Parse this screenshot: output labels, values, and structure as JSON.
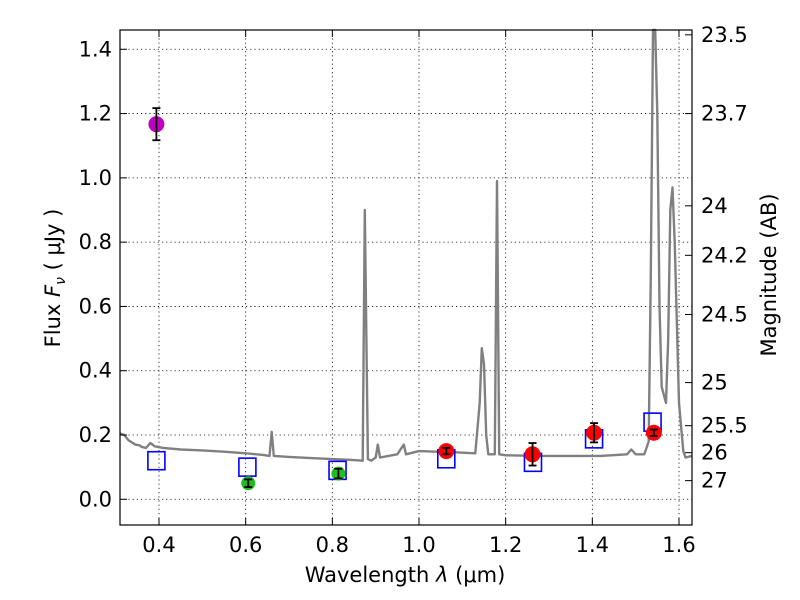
{
  "chart_data": {
    "type": "scatter",
    "xlabel_prefix": "Wavelength  ",
    "xlabel_math": "λ",
    "xlabel_unit": " (μm)",
    "ylabel_prefix": "Flux  ",
    "ylabel_math_F": "F",
    "ylabel_math_sub": "ν",
    "ylabel_unit": "  ( μJy )",
    "y2label": "Magnitude (AB)",
    "xlim": [
      0.31,
      1.63
    ],
    "ylim": [
      -0.08,
      1.46
    ],
    "grid": true,
    "x_ticks": [
      0.4,
      0.6,
      0.8,
      1.0,
      1.2,
      1.4,
      1.6
    ],
    "x_tick_labels": [
      "0.4",
      "0.6",
      "0.8",
      "1.0",
      "1.2",
      "1.4",
      "1.6"
    ],
    "y_ticks": [
      0.0,
      0.2,
      0.4,
      0.6,
      0.8,
      1.0,
      1.2,
      1.4
    ],
    "y_tick_labels": [
      "0.0",
      "0.2",
      "0.4",
      "0.6",
      "0.8",
      "1.0",
      "1.2",
      "1.4"
    ],
    "mag_ticks": [
      {
        "label": "23.5",
        "flux": 1.445
      },
      {
        "label": "23.7",
        "flux": 1.2
      },
      {
        "label": "24",
        "flux": 0.913
      },
      {
        "label": "24.2",
        "flux": 0.759
      },
      {
        "label": "24.5",
        "flux": 0.575
      },
      {
        "label": "25",
        "flux": 0.363
      },
      {
        "label": "25.5",
        "flux": 0.229
      },
      {
        "label": "26",
        "flux": 0.145
      },
      {
        "label": "27",
        "flux": 0.058
      }
    ],
    "colors": {
      "template": "#808080",
      "model_box": "#0000ff",
      "obs_uv": "#bf00bf",
      "obs_optical": "#22bb22",
      "obs_nir": "#ff0000",
      "errorbar": "#000000"
    },
    "template_spectrum": [
      [
        0.31,
        0.205
      ],
      [
        0.32,
        0.2
      ],
      [
        0.33,
        0.183
      ],
      [
        0.34,
        0.175
      ],
      [
        0.345,
        0.17
      ],
      [
        0.355,
        0.168
      ],
      [
        0.36,
        0.163
      ],
      [
        0.37,
        0.16
      ],
      [
        0.38,
        0.175
      ],
      [
        0.385,
        0.17
      ],
      [
        0.39,
        0.165
      ],
      [
        0.41,
        0.16
      ],
      [
        0.45,
        0.155
      ],
      [
        0.5,
        0.152
      ],
      [
        0.55,
        0.148
      ],
      [
        0.6,
        0.143
      ],
      [
        0.64,
        0.138
      ],
      [
        0.655,
        0.135
      ],
      [
        0.66,
        0.21
      ],
      [
        0.665,
        0.135
      ],
      [
        0.7,
        0.132
      ],
      [
        0.75,
        0.128
      ],
      [
        0.8,
        0.125
      ],
      [
        0.84,
        0.123
      ],
      [
        0.87,
        0.12
      ],
      [
        0.875,
        0.9
      ],
      [
        0.882,
        0.125
      ],
      [
        0.89,
        0.12
      ],
      [
        0.9,
        0.13
      ],
      [
        0.905,
        0.17
      ],
      [
        0.91,
        0.13
      ],
      [
        0.95,
        0.14
      ],
      [
        0.965,
        0.17
      ],
      [
        0.97,
        0.14
      ],
      [
        1.0,
        0.15
      ],
      [
        1.04,
        0.148
      ],
      [
        1.06,
        0.148
      ],
      [
        1.1,
        0.145
      ],
      [
        1.13,
        0.143
      ],
      [
        1.14,
        0.3
      ],
      [
        1.145,
        0.47
      ],
      [
        1.15,
        0.42
      ],
      [
        1.155,
        0.2
      ],
      [
        1.16,
        0.14
      ],
      [
        1.175,
        0.14
      ],
      [
        1.18,
        0.99
      ],
      [
        1.185,
        0.14
      ],
      [
        1.2,
        0.137
      ],
      [
        1.28,
        0.135
      ],
      [
        1.35,
        0.135
      ],
      [
        1.42,
        0.135
      ],
      [
        1.48,
        0.14
      ],
      [
        1.49,
        0.155
      ],
      [
        1.5,
        0.14
      ],
      [
        1.52,
        0.14
      ],
      [
        1.53,
        0.18
      ],
      [
        1.535,
        0.7
      ],
      [
        1.54,
        1.46
      ],
      [
        1.545,
        1.46
      ],
      [
        1.55,
        1.2
      ],
      [
        1.555,
        0.6
      ],
      [
        1.56,
        0.35
      ],
      [
        1.57,
        0.3
      ],
      [
        1.575,
        0.5
      ],
      [
        1.58,
        0.9
      ],
      [
        1.585,
        0.97
      ],
      [
        1.59,
        0.8
      ],
      [
        1.6,
        0.3
      ],
      [
        1.61,
        0.15
      ],
      [
        1.615,
        0.13
      ],
      [
        1.63,
        0.135
      ]
    ],
    "model_points": [
      {
        "x": 0.394,
        "y": 0.12
      },
      {
        "x": 0.604,
        "y": 0.1
      },
      {
        "x": 0.812,
        "y": 0.09
      },
      {
        "x": 1.063,
        "y": 0.126
      },
      {
        "x": 1.263,
        "y": 0.115
      },
      {
        "x": 1.404,
        "y": 0.188
      },
      {
        "x": 1.539,
        "y": 0.24
      }
    ],
    "observed_points": [
      {
        "x": 0.394,
        "y": 1.167,
        "err": 0.05,
        "group": "obs_uv"
      },
      {
        "x": 0.606,
        "y": 0.05,
        "err": 0.012,
        "group": "obs_optical"
      },
      {
        "x": 0.814,
        "y": 0.08,
        "err": 0.015,
        "group": "obs_optical"
      },
      {
        "x": 1.063,
        "y": 0.15,
        "err": 0.01,
        "group": "obs_nir"
      },
      {
        "x": 1.262,
        "y": 0.14,
        "err": 0.035,
        "group": "obs_nir"
      },
      {
        "x": 1.404,
        "y": 0.207,
        "err": 0.03,
        "group": "obs_nir"
      },
      {
        "x": 1.542,
        "y": 0.207,
        "err": 0.01,
        "group": "obs_nir"
      }
    ]
  }
}
